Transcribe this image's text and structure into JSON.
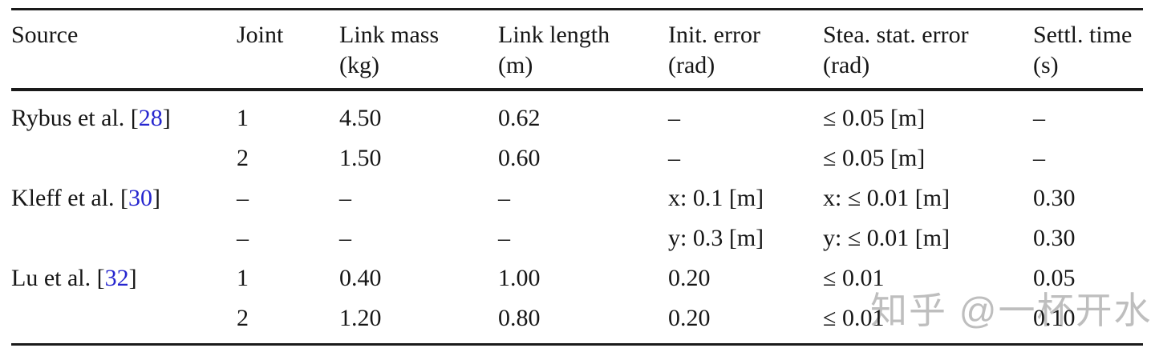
{
  "table": {
    "columns": [
      {
        "label": "Source",
        "unit": ""
      },
      {
        "label": "Joint",
        "unit": ""
      },
      {
        "label": "Link mass",
        "unit": "(kg)"
      },
      {
        "label": "Link length",
        "unit": "(m)"
      },
      {
        "label": "Init. error",
        "unit": "(rad)"
      },
      {
        "label": "Stea. stat. error",
        "unit": "(rad)"
      },
      {
        "label": "Settl. time",
        "unit": "(s)"
      }
    ],
    "rows": [
      {
        "source_prefix": "Rybus et al. [",
        "cite": "28",
        "source_suffix": "]",
        "joint": "1",
        "mass": "4.50",
        "length": "0.62",
        "init": "–",
        "stea": "≤ 0.05 [m]",
        "settl": "–"
      },
      {
        "source_prefix": "",
        "cite": "",
        "source_suffix": "",
        "joint": "2",
        "mass": "1.50",
        "length": "0.60",
        "init": "–",
        "stea": "≤ 0.05 [m]",
        "settl": "–"
      },
      {
        "source_prefix": "Kleff et al. [",
        "cite": "30",
        "source_suffix": "]",
        "joint": "–",
        "mass": "–",
        "length": "–",
        "init": "x: 0.1 [m]",
        "stea": "x: ≤ 0.01 [m]",
        "settl": "0.30"
      },
      {
        "source_prefix": "",
        "cite": "",
        "source_suffix": "",
        "joint": "–",
        "mass": "–",
        "length": "–",
        "init": "y: 0.3 [m]",
        "stea": "y: ≤ 0.01 [m]",
        "settl": "0.30"
      },
      {
        "source_prefix": "Lu et al. [",
        "cite": "32",
        "source_suffix": "]",
        "joint": "1",
        "mass": "0.40",
        "length": "1.00",
        "init": "0.20",
        "stea": "≤ 0.01",
        "settl": "0.05"
      },
      {
        "source_prefix": "",
        "cite": "",
        "source_suffix": "",
        "joint": "2",
        "mass": "1.20",
        "length": "0.80",
        "init": "0.20",
        "stea": "≤ 0.01",
        "settl": "0.10"
      }
    ]
  },
  "watermark": {
    "text": "知乎 @一杯开水",
    "color": "#a8a8a8"
  },
  "colors": {
    "text": "#161616",
    "citation_link": "#2626cf",
    "rule": "#1a1a1a",
    "background": "#ffffff"
  }
}
